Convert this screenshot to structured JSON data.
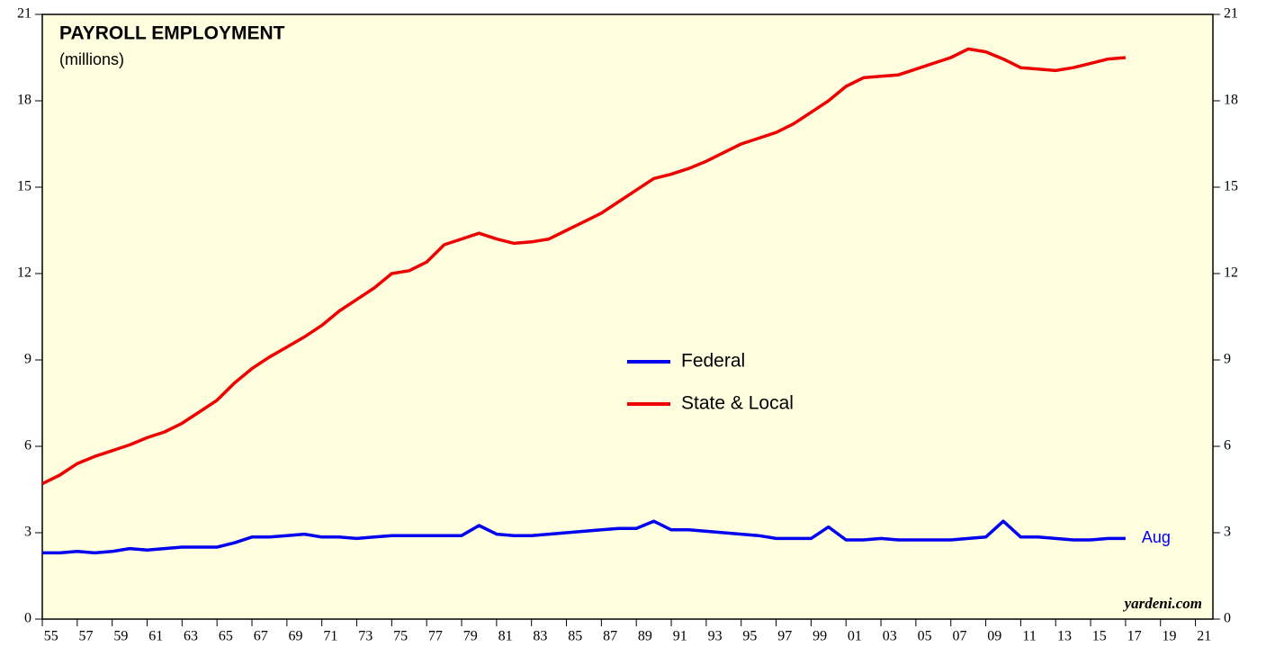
{
  "chart_data": {
    "type": "line",
    "title": "PAYROLL EMPLOYMENT",
    "subtitle": "(millions)",
    "annotation": "Aug",
    "source": "yardeni.com",
    "x": [
      1955,
      1956,
      1957,
      1958,
      1959,
      1960,
      1961,
      1962,
      1963,
      1964,
      1965,
      1966,
      1967,
      1968,
      1969,
      1970,
      1971,
      1972,
      1973,
      1974,
      1975,
      1976,
      1977,
      1978,
      1979,
      1980,
      1981,
      1982,
      1983,
      1984,
      1985,
      1986,
      1987,
      1988,
      1989,
      1990,
      1991,
      1992,
      1993,
      1994,
      1995,
      1996,
      1997,
      1998,
      1999,
      2000,
      2001,
      2002,
      2003,
      2004,
      2005,
      2006,
      2007,
      2008,
      2009,
      2010,
      2011,
      2012,
      2013,
      2014,
      2015,
      2016,
      2017
    ],
    "series": [
      {
        "name": "Federal",
        "color": "#0000ee",
        "values": [
          2.3,
          2.3,
          2.35,
          2.3,
          2.35,
          2.45,
          2.4,
          2.45,
          2.5,
          2.5,
          2.5,
          2.65,
          2.85,
          2.85,
          2.9,
          2.95,
          2.85,
          2.85,
          2.8,
          2.85,
          2.9,
          2.9,
          2.9,
          2.9,
          2.9,
          3.25,
          2.95,
          2.9,
          2.9,
          2.95,
          3.0,
          3.05,
          3.1,
          3.15,
          3.15,
          3.4,
          3.1,
          3.1,
          3.05,
          3.0,
          2.95,
          2.9,
          2.8,
          2.8,
          2.8,
          3.2,
          2.75,
          2.75,
          2.8,
          2.75,
          2.75,
          2.75,
          2.75,
          2.8,
          2.85,
          3.4,
          2.85,
          2.85,
          2.8,
          2.75,
          2.75,
          2.8,
          2.8
        ]
      },
      {
        "name": "State & Local",
        "color": "#ee0000",
        "values": [
          4.7,
          5.0,
          5.4,
          5.65,
          5.85,
          6.05,
          6.3,
          6.5,
          6.8,
          7.2,
          7.6,
          8.2,
          8.7,
          9.1,
          9.45,
          9.8,
          10.2,
          10.7,
          11.1,
          11.5,
          12.0,
          12.1,
          12.4,
          13.0,
          13.2,
          13.4,
          13.2,
          13.05,
          13.1,
          13.2,
          13.5,
          13.8,
          14.1,
          14.5,
          14.9,
          15.3,
          15.45,
          15.65,
          15.9,
          16.2,
          16.5,
          16.7,
          16.9,
          17.2,
          17.6,
          18.0,
          18.5,
          18.8,
          18.85,
          18.9,
          19.1,
          19.3,
          19.5,
          19.8,
          19.7,
          19.45,
          19.15,
          19.1,
          19.05,
          19.15,
          19.3,
          19.45,
          19.5
        ]
      }
    ],
    "xlim": [
      1955,
      2022
    ],
    "xticks": [
      {
        "value": 1955,
        "label": "55"
      },
      {
        "value": 1957,
        "label": "57"
      },
      {
        "value": 1959,
        "label": "59"
      },
      {
        "value": 1961,
        "label": "61"
      },
      {
        "value": 1963,
        "label": "63"
      },
      {
        "value": 1965,
        "label": "65"
      },
      {
        "value": 1967,
        "label": "67"
      },
      {
        "value": 1969,
        "label": "69"
      },
      {
        "value": 1971,
        "label": "71"
      },
      {
        "value": 1973,
        "label": "73"
      },
      {
        "value": 1975,
        "label": "75"
      },
      {
        "value": 1977,
        "label": "77"
      },
      {
        "value": 1979,
        "label": "79"
      },
      {
        "value": 1981,
        "label": "81"
      },
      {
        "value": 1983,
        "label": "83"
      },
      {
        "value": 1985,
        "label": "85"
      },
      {
        "value": 1987,
        "label": "87"
      },
      {
        "value": 1989,
        "label": "89"
      },
      {
        "value": 1991,
        "label": "91"
      },
      {
        "value": 1993,
        "label": "93"
      },
      {
        "value": 1995,
        "label": "95"
      },
      {
        "value": 1997,
        "label": "97"
      },
      {
        "value": 1999,
        "label": "99"
      },
      {
        "value": 2001,
        "label": "01"
      },
      {
        "value": 2003,
        "label": "03"
      },
      {
        "value": 2005,
        "label": "05"
      },
      {
        "value": 2007,
        "label": "07"
      },
      {
        "value": 2009,
        "label": "09"
      },
      {
        "value": 2011,
        "label": "11"
      },
      {
        "value": 2013,
        "label": "13"
      },
      {
        "value": 2015,
        "label": "15"
      },
      {
        "value": 2017,
        "label": "17"
      },
      {
        "value": 2019,
        "label": "19"
      },
      {
        "value": 2021,
        "label": "21"
      }
    ],
    "ylim": [
      0,
      21
    ],
    "yticks": [
      0,
      3,
      6,
      9,
      12,
      15,
      18,
      21
    ],
    "legend": "center"
  }
}
